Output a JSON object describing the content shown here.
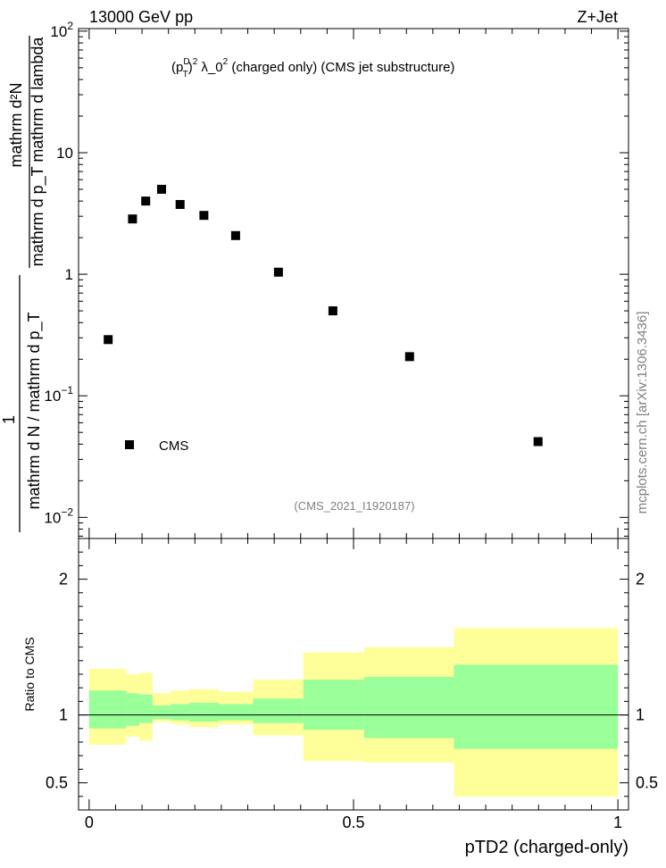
{
  "header": {
    "left": "13000 GeV pp",
    "right": "Z+Jet"
  },
  "side_label": "mcplots.cern.ch [arXiv:1306.3436]",
  "chart_data": [
    {
      "type": "scatter",
      "title": "(p_T^D)^2 λ_0^2 (charged only) (CMS jet substructure)",
      "title_parts": {
        "p": "(p",
        "sup_d": "D",
        "sub_t": "T",
        "close": ")",
        "sup_2": "2",
        "lambda": " λ_0",
        "sup_2b": "2",
        "rest": " (charged only) (CMS jet substructure)"
      },
      "analysis_id": "(CMS_2021_I1920187)",
      "ylabel_top": "mathrm d²N",
      "ylabel_bottom": "mathrm d p_T mathrm d lambda",
      "ylabel_prefix": "1",
      "ylabel_denominator": "mathrm d N / mathrm d p_T",
      "y_scale": "log",
      "ylim": [
        0.0067,
        105
      ],
      "xlim": [
        -0.02,
        1.02
      ],
      "y_ticks": [
        {
          "value": 100,
          "base": "10",
          "exp": "2"
        },
        {
          "value": 10,
          "base": "10",
          "exp": ""
        },
        {
          "value": 1,
          "base": "1",
          "exp": ""
        },
        {
          "value": 0.1,
          "base": "10",
          "exp": "−1"
        },
        {
          "value": 0.01,
          "base": "10",
          "exp": "−2"
        }
      ],
      "series": [
        {
          "name": "CMS",
          "marker": "square",
          "color": "#000000",
          "x": [
            0.036,
            0.082,
            0.107,
            0.137,
            0.172,
            0.217,
            0.277,
            0.358,
            0.461,
            0.606,
            0.849
          ],
          "y": [
            0.29,
            2.85,
            4.0,
            5.0,
            3.75,
            3.05,
            2.08,
            1.04,
            0.5,
            0.21,
            0.042
          ]
        }
      ],
      "legend": {
        "position": "bottom-left"
      }
    },
    {
      "type": "area",
      "ylabel": "Ratio to CMS",
      "xlabel": "pTD2 (charged-only)",
      "ylim": [
        0.3,
        2.3
      ],
      "xlim": [
        -0.02,
        1.02
      ],
      "y_ticks": [
        0.5,
        1,
        2
      ],
      "y_tick_labels": [
        "0.5",
        "1",
        "2"
      ],
      "x_ticks": [
        0,
        0.5,
        1
      ],
      "x_tick_labels": [
        "0",
        "0.5",
        "1"
      ],
      "reference_line": 1,
      "bins": [
        0,
        0.07,
        0.095,
        0.12,
        0.155,
        0.19,
        0.245,
        0.31,
        0.405,
        0.52,
        0.69,
        1.0
      ],
      "bands": [
        {
          "name": "outer",
          "color": "#ffff99",
          "low": [
            0.78,
            0.84,
            0.81,
            0.95,
            0.93,
            0.91,
            0.93,
            0.85,
            0.66,
            0.65,
            0.4
          ],
          "high": [
            1.34,
            1.3,
            1.31,
            1.16,
            1.18,
            1.19,
            1.17,
            1.26,
            1.46,
            1.5,
            1.64
          ]
        },
        {
          "name": "inner",
          "color": "#99ff99",
          "low": [
            0.9,
            0.92,
            0.94,
            0.97,
            0.96,
            0.95,
            0.96,
            0.94,
            0.89,
            0.83,
            0.75
          ],
          "high": [
            1.18,
            1.16,
            1.15,
            1.07,
            1.08,
            1.09,
            1.08,
            1.12,
            1.26,
            1.28,
            1.37
          ]
        }
      ]
    }
  ]
}
